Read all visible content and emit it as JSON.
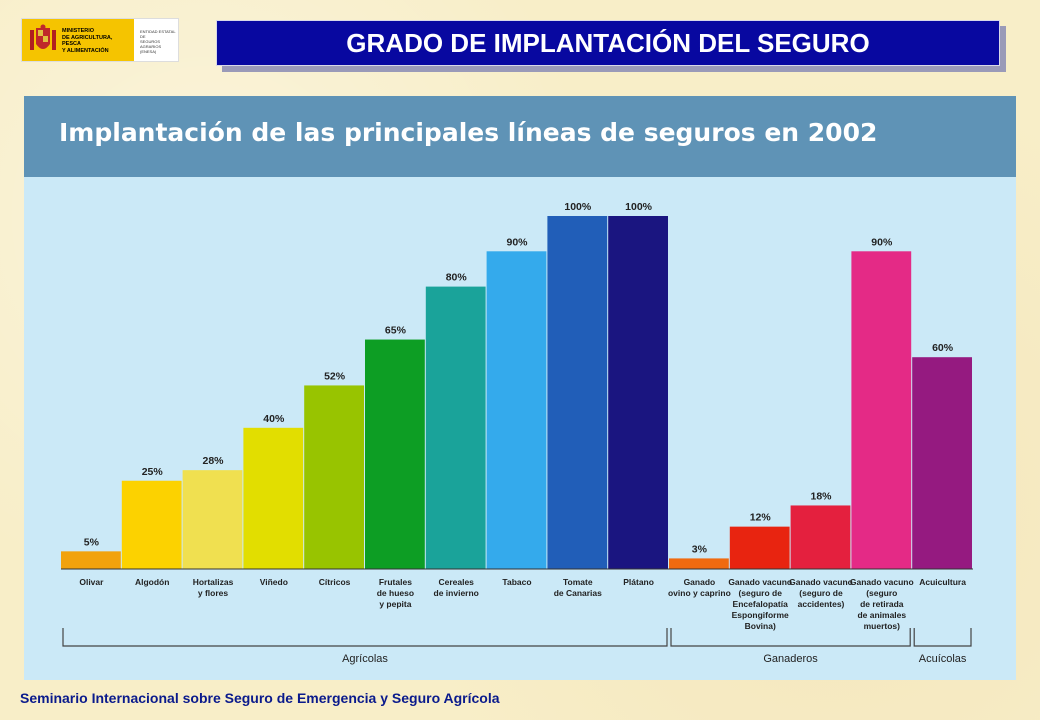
{
  "logo": {
    "ministry_lines": [
      "MINISTERIO",
      "DE AGRICULTURA, PESCA",
      "Y ALIMENTACIÓN"
    ],
    "entity_lines": [
      "ENTIDAD ESTATAL DE",
      "SEGUROS AGRARIOS",
      "(ENESA)"
    ]
  },
  "slide_title": "GRADO DE IMPLANTACIÓN DEL SEGURO",
  "footer": "Seminario Internacional sobre Seguro de Emergencia y Seguro Agrícola",
  "colors": {
    "title_bar": "#0808a0",
    "panel_header": "#5f93b6",
    "panel_bg": "#cbe9f7",
    "footer_text": "#0a1a8c"
  },
  "chart_data": {
    "type": "bar",
    "title": "Implantación de las principales líneas de seguros en 2002",
    "ylim": [
      0,
      100
    ],
    "categories": [
      "Olivar",
      "Algodón",
      "Hortalizas\ny flores",
      "Viñedo",
      "Cítricos",
      "Frutales\nde hueso\ny pepita",
      "Cereales\nde invierno",
      "Tabaco",
      "Tomate\nde Canarias",
      "Plátano",
      "Ganado\novino y caprino",
      "Ganado vacuno\n(seguro de\nEncefalopatía\nEspongiforme\nBovina)",
      "Ganado vacuno\n(seguro de\naccidentes)",
      "Ganado vacuno\n(seguro\nde retirada\nde animales\nmuertos)",
      "Acuicultura"
    ],
    "values": [
      5,
      25,
      28,
      40,
      52,
      65,
      80,
      90,
      100,
      100,
      3,
      12,
      18,
      90,
      60
    ],
    "value_labels": [
      "5%",
      "25%",
      "28%",
      "40%",
      "52%",
      "65%",
      "80%",
      "90%",
      "100%",
      "100%",
      "3%",
      "12%",
      "18%",
      "90%",
      "60%"
    ],
    "bar_colors": [
      "#f2a20c",
      "#fcd200",
      "#f0e050",
      "#e2de00",
      "#98c400",
      "#0d9e24",
      "#1aa39a",
      "#34aaec",
      "#215eb8",
      "#1a1580",
      "#f06a10",
      "#e82410",
      "#e4203e",
      "#e42a86",
      "#951a80"
    ],
    "groups": [
      {
        "name": "Agrícolas",
        "start": 0,
        "end": 9
      },
      {
        "name": "Ganaderos",
        "start": 10,
        "end": 13
      },
      {
        "name": "Acuícolas",
        "start": 14,
        "end": 14
      }
    ]
  }
}
